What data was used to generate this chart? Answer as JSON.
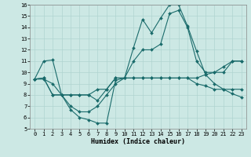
{
  "title": "",
  "xlabel": "Humidex (Indice chaleur)",
  "xlim": [
    -0.5,
    23.5
  ],
  "ylim": [
    5,
    16
  ],
  "xticks": [
    0,
    1,
    2,
    3,
    4,
    5,
    6,
    7,
    8,
    9,
    10,
    11,
    12,
    13,
    14,
    15,
    16,
    17,
    18,
    19,
    20,
    21,
    22,
    23
  ],
  "yticks": [
    5,
    6,
    7,
    8,
    9,
    10,
    11,
    12,
    13,
    14,
    15,
    16
  ],
  "bg_color": "#cce8e4",
  "grid_color": "#b0d4d0",
  "line_color": "#1a6b6b",
  "series": [
    [
      9.4,
      9.4,
      9.0,
      8.0,
      6.7,
      6.0,
      5.8,
      5.5,
      5.5,
      9.3,
      9.5,
      12.2,
      14.7,
      13.5,
      14.8,
      16.0,
      16.0,
      14.1,
      11.9,
      9.8,
      9.0,
      8.5,
      8.1,
      7.8
    ],
    [
      9.4,
      11.0,
      11.1,
      8.0,
      8.0,
      8.0,
      8.0,
      7.5,
      8.5,
      9.5,
      9.5,
      11.0,
      12.0,
      12.0,
      12.5,
      15.2,
      15.5,
      14.0,
      11.0,
      10.0,
      10.0,
      10.0,
      11.0,
      11.0
    ],
    [
      9.4,
      9.5,
      8.0,
      8.0,
      8.0,
      8.0,
      8.0,
      8.5,
      8.5,
      9.5,
      9.5,
      9.5,
      9.5,
      9.5,
      9.5,
      9.5,
      9.5,
      9.5,
      9.0,
      8.8,
      8.5,
      8.5,
      8.5,
      8.5
    ],
    [
      9.4,
      9.5,
      8.0,
      8.0,
      7.0,
      6.5,
      6.5,
      7.0,
      8.0,
      9.0,
      9.5,
      9.5,
      9.5,
      9.5,
      9.5,
      9.5,
      9.5,
      9.5,
      9.5,
      9.8,
      10.0,
      10.5,
      11.0,
      11.0
    ]
  ],
  "figsize": [
    3.2,
    2.0
  ],
  "dpi": 100,
  "tick_fontsize": 5.0,
  "xlabel_fontsize": 6.0,
  "marker_size": 2.0,
  "linewidth": 0.8
}
